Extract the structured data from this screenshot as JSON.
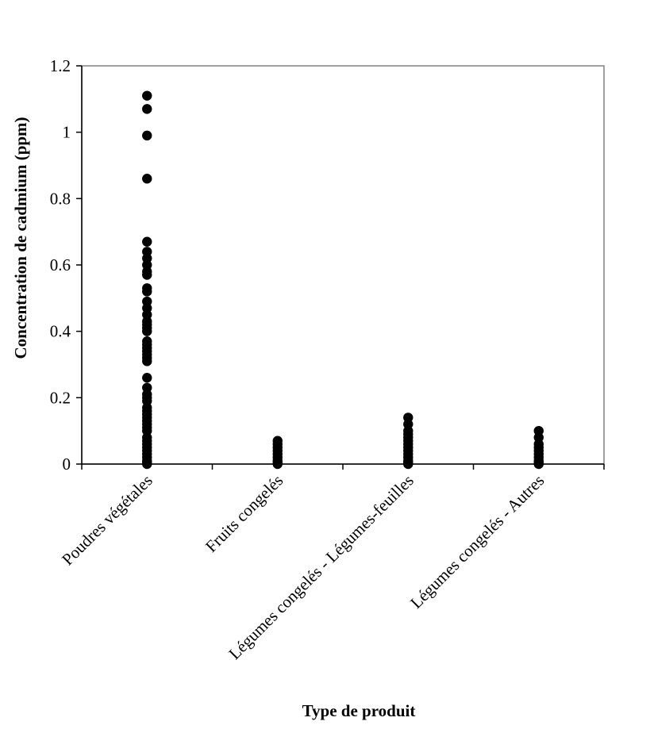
{
  "chart_data": {
    "type": "scatter",
    "title": "",
    "xlabel": "Type de produit",
    "ylabel": "Concentration de cadmium (ppm)",
    "ylim": [
      0,
      1.2
    ],
    "yticks": [
      "0",
      "0.2",
      "0.4",
      "0.6",
      "0.8",
      "1",
      "1.2"
    ],
    "ytick_values": [
      0,
      0.2,
      0.4,
      0.6,
      0.8,
      1.0,
      1.2
    ],
    "grid": false,
    "categories": [
      "Poudres végétales",
      "Fruits congelés",
      "Légumes congelés - Légumes-feuilles",
      "Légumes congelés - Autres"
    ],
    "series": [
      {
        "name": "Poudres végétales",
        "values": [
          1.11,
          1.07,
          0.99,
          0.86,
          0.67,
          0.64,
          0.62,
          0.6,
          0.58,
          0.57,
          0.53,
          0.52,
          0.49,
          0.47,
          0.45,
          0.43,
          0.42,
          0.41,
          0.4,
          0.37,
          0.36,
          0.35,
          0.34,
          0.33,
          0.32,
          0.31,
          0.26,
          0.23,
          0.21,
          0.2,
          0.19,
          0.17,
          0.16,
          0.15,
          0.14,
          0.13,
          0.12,
          0.11,
          0.1,
          0.08,
          0.07,
          0.06,
          0.05,
          0.04,
          0.03,
          0.02,
          0.01,
          0.005,
          0
        ]
      },
      {
        "name": "Fruits congelés",
        "values": [
          0.07,
          0.06,
          0.05,
          0.04,
          0.03,
          0.02,
          0.01,
          0.005,
          0
        ]
      },
      {
        "name": "Légumes congelés - Légumes-feuilles",
        "values": [
          0.14,
          0.12,
          0.1,
          0.09,
          0.08,
          0.07,
          0.06,
          0.05,
          0.04,
          0.03,
          0.02,
          0.01,
          0.005,
          0
        ]
      },
      {
        "name": "Légumes congelés - Autres",
        "values": [
          0.1,
          0.08,
          0.06,
          0.05,
          0.04,
          0.03,
          0.02,
          0.01,
          0.005,
          0
        ]
      }
    ],
    "marker_color": "#000000"
  }
}
